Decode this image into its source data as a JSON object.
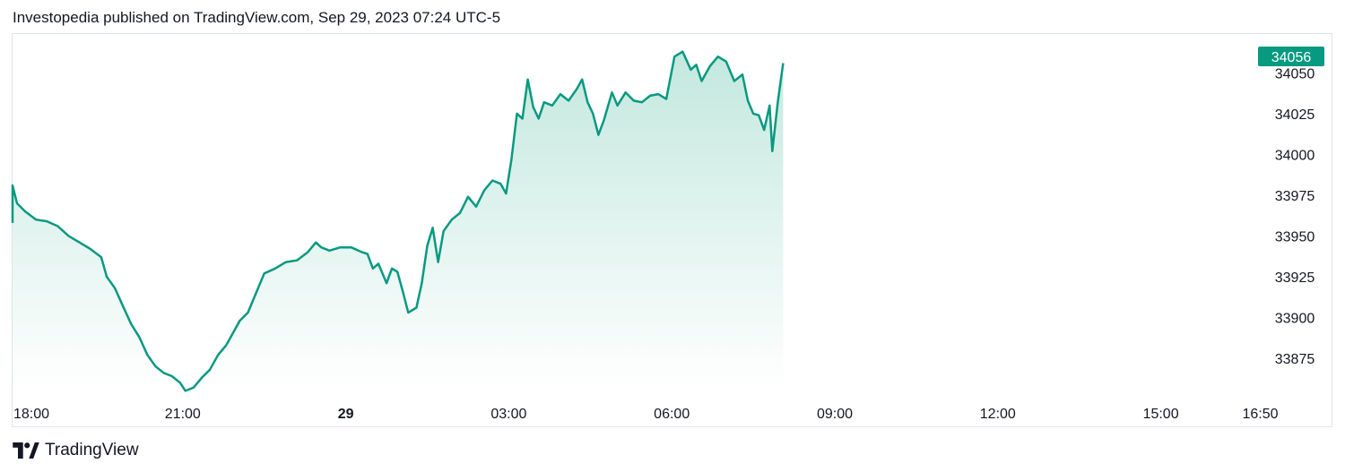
{
  "header": {
    "published": "Investopedia published on TradingView.com, Sep 29, 2023 07:24 UTC-5"
  },
  "footer": {
    "brand": "TradingView",
    "logo_icon": "tradingview-logo-icon"
  },
  "colors": {
    "line": "#089981",
    "fill_top": "#c3e8de",
    "fill_bottom": "#ffffff",
    "price_tag": "#089981",
    "grid_border": "#e0e3eb"
  },
  "chart_data": {
    "type": "area",
    "title": "",
    "xlabel": "",
    "ylabel": "",
    "ylim": [
      33853,
      34070
    ],
    "y_ticks": [
      33875,
      33900,
      33925,
      33950,
      33975,
      34000,
      34025,
      34050
    ],
    "x_ticks": [
      {
        "label": "18:00",
        "hour": 0,
        "bold": false
      },
      {
        "label": "21:00",
        "hour": 3,
        "bold": false
      },
      {
        "label": "29",
        "hour": 6,
        "bold": true
      },
      {
        "label": "03:00",
        "hour": 9,
        "bold": false
      },
      {
        "label": "06:00",
        "hour": 12,
        "bold": false
      },
      {
        "label": "09:00",
        "hour": 15,
        "bold": false
      },
      {
        "label": "12:00",
        "hour": 18,
        "bold": false
      },
      {
        "label": "15:00",
        "hour": 21,
        "bold": false
      },
      {
        "label": "16:50",
        "hour": 22.83,
        "bold": false
      }
    ],
    "last_price": "34056",
    "series": [
      {
        "points": [
          [
            -0.4,
            33958
          ],
          [
            -0.3,
            33975
          ],
          [
            -0.15,
            33981
          ],
          [
            -0.05,
            33970
          ],
          [
            0.1,
            33965
          ],
          [
            0.3,
            33960
          ],
          [
            0.5,
            33959
          ],
          [
            0.7,
            33956
          ],
          [
            0.9,
            33950
          ],
          [
            1.1,
            33946
          ],
          [
            1.3,
            33942
          ],
          [
            1.5,
            33937
          ],
          [
            1.6,
            33925
          ],
          [
            1.75,
            33918
          ],
          [
            1.9,
            33907
          ],
          [
            2.05,
            33896
          ],
          [
            2.2,
            33888
          ],
          [
            2.35,
            33877
          ],
          [
            2.5,
            33870
          ],
          [
            2.65,
            33866
          ],
          [
            2.8,
            33864
          ],
          [
            2.95,
            33860
          ],
          [
            3.05,
            33855
          ],
          [
            3.2,
            33857
          ],
          [
            3.35,
            33863
          ],
          [
            3.5,
            33868
          ],
          [
            3.65,
            33877
          ],
          [
            3.8,
            33883
          ],
          [
            3.95,
            33892
          ],
          [
            4.05,
            33898
          ],
          [
            4.2,
            33903
          ],
          [
            4.35,
            33915
          ],
          [
            4.5,
            33927
          ],
          [
            4.7,
            33930
          ],
          [
            4.9,
            33934
          ],
          [
            5.1,
            33935
          ],
          [
            5.3,
            33940
          ],
          [
            5.45,
            33946
          ],
          [
            5.55,
            33943
          ],
          [
            5.7,
            33941
          ],
          [
            5.9,
            33943
          ],
          [
            6.1,
            33943
          ],
          [
            6.3,
            33940
          ],
          [
            6.4,
            33939
          ],
          [
            6.5,
            33930
          ],
          [
            6.6,
            33933
          ],
          [
            6.75,
            33921
          ],
          [
            6.85,
            33930
          ],
          [
            6.95,
            33928
          ],
          [
            7.05,
            33916
          ],
          [
            7.15,
            33903
          ],
          [
            7.3,
            33906
          ],
          [
            7.4,
            33921
          ],
          [
            7.5,
            33944
          ],
          [
            7.6,
            33955
          ],
          [
            7.7,
            33934
          ],
          [
            7.8,
            33953
          ],
          [
            7.95,
            33960
          ],
          [
            8.1,
            33964
          ],
          [
            8.25,
            33974
          ],
          [
            8.4,
            33968
          ],
          [
            8.55,
            33978
          ],
          [
            8.7,
            33984
          ],
          [
            8.85,
            33982
          ],
          [
            8.95,
            33976
          ],
          [
            9.05,
            33997
          ],
          [
            9.15,
            34025
          ],
          [
            9.25,
            34022
          ],
          [
            9.35,
            34046
          ],
          [
            9.45,
            34029
          ],
          [
            9.55,
            34022
          ],
          [
            9.65,
            34032
          ],
          [
            9.8,
            34030
          ],
          [
            9.95,
            34037
          ],
          [
            10.1,
            34033
          ],
          [
            10.25,
            34040
          ],
          [
            10.35,
            34046
          ],
          [
            10.45,
            34032
          ],
          [
            10.55,
            34025
          ],
          [
            10.65,
            34012
          ],
          [
            10.75,
            34021
          ],
          [
            10.9,
            34038
          ],
          [
            11.0,
            34030
          ],
          [
            11.15,
            34038
          ],
          [
            11.3,
            34033
          ],
          [
            11.45,
            34032
          ],
          [
            11.6,
            34036
          ],
          [
            11.75,
            34037
          ],
          [
            11.9,
            34034
          ],
          [
            12.05,
            34060
          ],
          [
            12.2,
            34063
          ],
          [
            12.35,
            34052
          ],
          [
            12.45,
            34055
          ],
          [
            12.55,
            34045
          ],
          [
            12.7,
            34054
          ],
          [
            12.85,
            34060
          ],
          [
            13.0,
            34057
          ],
          [
            13.15,
            34045
          ],
          [
            13.3,
            34049
          ],
          [
            13.4,
            34033
          ],
          [
            13.5,
            34025
          ],
          [
            13.6,
            34024
          ],
          [
            13.7,
            34015
          ],
          [
            13.8,
            34030
          ],
          [
            13.85,
            34002
          ],
          [
            13.95,
            34032
          ],
          [
            14.05,
            34056
          ]
        ]
      }
    ]
  }
}
